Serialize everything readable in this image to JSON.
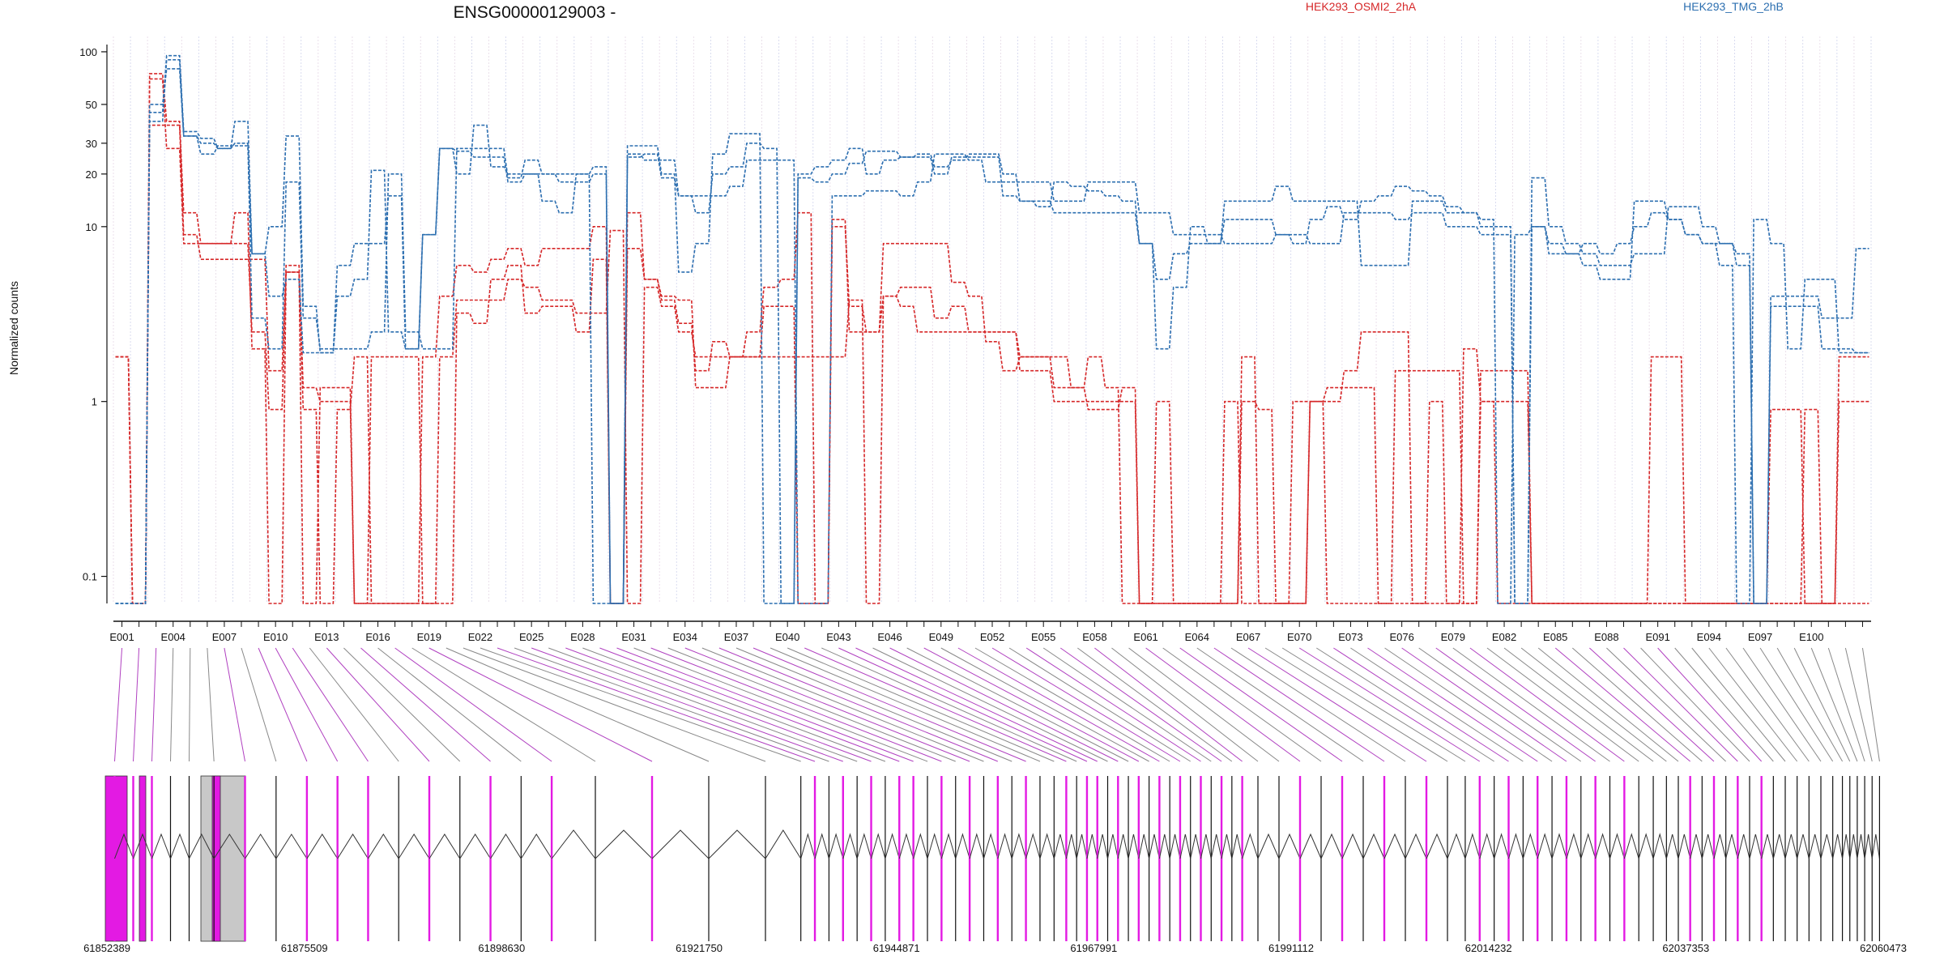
{
  "colors": {
    "group_a": "#d62728",
    "group_b": "#2c6fb0",
    "highlight_exon": "#e31ae3",
    "connector_highlight": "#b040c0",
    "connector_plain": "#888888",
    "exon_gray": "#c8c8c8",
    "gridline": "#d0d4ec"
  },
  "chart_data": {
    "type": "line",
    "title": "ENSG00000129003 -",
    "ylabel": "Normalized counts",
    "yscale": "log",
    "ylim": [
      0.07,
      110
    ],
    "y_ticks": [
      "100",
      "50",
      "30",
      "20",
      "10",
      "1",
      "0.1"
    ],
    "y_tick_values": [
      100,
      50,
      30,
      20,
      10,
      1,
      0.1
    ],
    "legend": [
      {
        "label": "HEK293_OSMI2_2hA",
        "color": "#d62728"
      },
      {
        "label": "HEK293_TMG_2hB",
        "color": "#2c6fb0"
      }
    ],
    "exon_count": 103,
    "exon_tick_labels": [
      "E001",
      "E004",
      "E007",
      "E010",
      "E013",
      "E016",
      "E019",
      "E022",
      "E025",
      "E028",
      "E031",
      "E034",
      "E037",
      "E040",
      "E043",
      "E046",
      "E049",
      "E052",
      "E055",
      "E058",
      "E061",
      "E064",
      "E067",
      "E070",
      "E073",
      "E076",
      "E079",
      "E082",
      "E085",
      "E088",
      "E091",
      "E094",
      "E097",
      "E100"
    ],
    "series": [
      {
        "group": "HEK293_OSMI2_2hA",
        "values": [
          1.8,
          0.07,
          38,
          38,
          9,
          6.5,
          6.5,
          6.5,
          6.5,
          1.5,
          6,
          1.2,
          1.0,
          1.0,
          0.07,
          1.8,
          1.8,
          1.8,
          0.07,
          1.8,
          3.8,
          3.8,
          3.8,
          5,
          4.5,
          3.8,
          3.8,
          3.2,
          3.2,
          9.5,
          0.07,
          4.5,
          3.5,
          2.5,
          1.8,
          1.8,
          1.8,
          1.8,
          1.8,
          1.8,
          1.8,
          1.8,
          1.8,
          3.8,
          0.07,
          4,
          3.5,
          2.5,
          2.5,
          2.5,
          2.5,
          2.5,
          2.5,
          1.5,
          1.5,
          1.0,
          1.0,
          1.0,
          1.0,
          1.0,
          0.07,
          1.0,
          0.07,
          0.07,
          0.07,
          1.0,
          0.07,
          0.07,
          0.07,
          0.07,
          1.0,
          1.0,
          1.5,
          2.5,
          2.5,
          2.5,
          0.07,
          0.07,
          0.07,
          2.0,
          1.0,
          1.0,
          1.0,
          0.07,
          0.07,
          0.07,
          0.07,
          0.07,
          0.07,
          0.07,
          0.07,
          0.07,
          0.07,
          0.07,
          0.07,
          0.07,
          0.07,
          0.07,
          0.07,
          0.07,
          0.07,
          0.07,
          0.07
        ]
      },
      {
        "group": "HEK293_OSMI2_2hA",
        "values": [
          1.8,
          0.07,
          70,
          28,
          8,
          8,
          8,
          12,
          2.0,
          0.07,
          5.5,
          0.9,
          0.07,
          0.9,
          1.8,
          0.07,
          0.07,
          0.07,
          1.8,
          4,
          6,
          5.5,
          6.5,
          7.5,
          6,
          7.5,
          7.5,
          7.5,
          10,
          0.07,
          7.5,
          5,
          4,
          3.8,
          1.2,
          1.2,
          1.8,
          2.5,
          4.5,
          5,
          12,
          0.07,
          10,
          3.5,
          2.5,
          8,
          8,
          8,
          8,
          4.8,
          4.0,
          2.2,
          1.5,
          1.8,
          1.8,
          1.2,
          1.2,
          1.8,
          1.2,
          0.07,
          0.07,
          0.07,
          0.07,
          0.07,
          0.07,
          0.07,
          1.8,
          0.07,
          0.07,
          1.0,
          1.0,
          0.07,
          0.07,
          0.07,
          0.07,
          1.5,
          1.5,
          1.5,
          1.5,
          0.07,
          1.5,
          1.5,
          1.5,
          0.07,
          0.07,
          0.07,
          0.07,
          0.07,
          0.07,
          0.07,
          1.8,
          1.8,
          0.07,
          0.07,
          0.07,
          0.07,
          0.07,
          0.9,
          0.9,
          0.07,
          0.07,
          1.0,
          1.0
        ]
      },
      {
        "group": "HEK293_OSMI2_2hA",
        "values": [
          1.8,
          0.07,
          75,
          40,
          12,
          8,
          8,
          8,
          2.5,
          0.9,
          5.5,
          0.07,
          1.2,
          1.2,
          0.07,
          0.07,
          0.07,
          0.07,
          0.07,
          0.07,
          3.2,
          2.8,
          5,
          6,
          3.2,
          3.5,
          3.5,
          2.5,
          6.5,
          0.07,
          12,
          5,
          3.8,
          2.8,
          1.5,
          2.2,
          1.8,
          1.8,
          3.5,
          3.5,
          0.07,
          0.07,
          11,
          2.5,
          2.5,
          4,
          4.5,
          4.5,
          3,
          3.5,
          2.5,
          2.5,
          2.5,
          1.8,
          1.8,
          1.8,
          1.2,
          0.9,
          0.9,
          1.2,
          0.07,
          0.07,
          0.07,
          0.07,
          0.07,
          0.07,
          1.0,
          0.9,
          0.07,
          0.07,
          1.0,
          1.2,
          1.2,
          1.2,
          0.07,
          0.07,
          0.07,
          1.0,
          0.07,
          0.07,
          1.0,
          0.07,
          0.07,
          0.07,
          0.07,
          0.07,
          0.07,
          0.07,
          0.07,
          0.07,
          0.07,
          0.07,
          0.07,
          0.07,
          0.07,
          0.07,
          0.07,
          0.07,
          0.07,
          0.9,
          0.07,
          1.8,
          1.8
        ]
      },
      {
        "group": "HEK293_TMG_2hB",
        "values": [
          0.07,
          0.07,
          40,
          90,
          33,
          30,
          28,
          30,
          3.0,
          2.0,
          18,
          3.0,
          2.0,
          2.0,
          2.0,
          2.5,
          20,
          2.5,
          2.0,
          2.0,
          28,
          28,
          28,
          19,
          24,
          20,
          18,
          18,
          20,
          0.07,
          26,
          24,
          24,
          15,
          15,
          15,
          17,
          24,
          24,
          24,
          0.07,
          0.07,
          15,
          15,
          16,
          16,
          15,
          18,
          26,
          26,
          24,
          18,
          18,
          18,
          18,
          14,
          14,
          18,
          18,
          18,
          12,
          12,
          9,
          9,
          9,
          8,
          8,
          8,
          9,
          9,
          8,
          8,
          12,
          12,
          12,
          11,
          12,
          12,
          10,
          10,
          9,
          9,
          0.07,
          10,
          7,
          7,
          8,
          7,
          8,
          10,
          12,
          11,
          9,
          8,
          8,
          7,
          0.07,
          3.5,
          3.5,
          3.5,
          2.0,
          2.0,
          1.9
        ]
      },
      {
        "group": "HEK293_TMG_2hB",
        "values": [
          0.07,
          0.07,
          45,
          95,
          35,
          32,
          28,
          40,
          7.0,
          10,
          33,
          3.5,
          1.9,
          6,
          8,
          8,
          15,
          2.0,
          9,
          28,
          20,
          38,
          22,
          20,
          20,
          20,
          20,
          20,
          0.07,
          0.07,
          29,
          29,
          20,
          5.5,
          8,
          26,
          34,
          34,
          0.07,
          0.07,
          20,
          22,
          24,
          28,
          20,
          24,
          25,
          25,
          20,
          25,
          25,
          25,
          15,
          14,
          14,
          12,
          12,
          12,
          12,
          12,
          8,
          5.0,
          7,
          8,
          8,
          14,
          14,
          14,
          17,
          14,
          14,
          14,
          14,
          6,
          6,
          6,
          14,
          14,
          12,
          12,
          10,
          10,
          0.07,
          19,
          10,
          8,
          7,
          6,
          6,
          7,
          7,
          13,
          13,
          10,
          8,
          6,
          0.07,
          4,
          4,
          4,
          3,
          3.0,
          7.5
        ]
      },
      {
        "group": "HEK293_TMG_2hB",
        "values": [
          0.07,
          0.07,
          50,
          80,
          33,
          26,
          29,
          29,
          7.0,
          4,
          5,
          1.9,
          1.9,
          4,
          5,
          21,
          2.5,
          2.0,
          9,
          28,
          27,
          25,
          25,
          18,
          20,
          14,
          12,
          20,
          22,
          0.07,
          25,
          26,
          19,
          15,
          12,
          20,
          22,
          30,
          28,
          0.07,
          19,
          18,
          20,
          23,
          27,
          27,
          25,
          26,
          22,
          24,
          26,
          26,
          20,
          14,
          13,
          18,
          17,
          16,
          15,
          14,
          8,
          2.0,
          4.5,
          10,
          8,
          11,
          11,
          11,
          9,
          8,
          11,
          13,
          11,
          14,
          15,
          17,
          16,
          15,
          13,
          12,
          11,
          0.07,
          9,
          10,
          8,
          7,
          6,
          5,
          5,
          14,
          14,
          11,
          9,
          8,
          6,
          0.07,
          11,
          8,
          2.0,
          5.0,
          5.0,
          1.9,
          1.9
        ]
      }
    ],
    "genomic_ticks": [
      "61852389",
      "61875509",
      "61898630",
      "61921750",
      "61944871",
      "61967991",
      "61991112",
      "62014232",
      "62037353",
      "62060473"
    ]
  }
}
